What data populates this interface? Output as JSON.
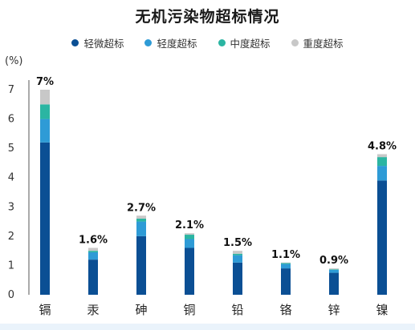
{
  "chart_data": {
    "type": "bar",
    "stacked": true,
    "title": "无机污染物超标情况",
    "ylabel": "(%)",
    "xlabel": "",
    "ylim": [
      0,
      7
    ],
    "yticks": [
      0,
      1,
      2,
      3,
      4,
      5,
      6,
      7
    ],
    "grid": false,
    "legend_position": "top",
    "categories": [
      "镉",
      "汞",
      "砷",
      "铜",
      "铅",
      "铬",
      "锌",
      "镍"
    ],
    "totals_labels": [
      "7%",
      "1.6%",
      "2.7%",
      "2.1%",
      "1.5%",
      "1.1%",
      "0.9%",
      "4.8%"
    ],
    "totals": [
      7.0,
      1.6,
      2.7,
      2.1,
      1.5,
      1.1,
      0.9,
      4.8
    ],
    "series": [
      {
        "name": "轻微超标",
        "color": "#0b4f94",
        "values": [
          5.2,
          1.2,
          2.0,
          1.6,
          1.1,
          0.9,
          0.75,
          3.9
        ]
      },
      {
        "name": "轻度超标",
        "color": "#2e9bd6",
        "values": [
          0.8,
          0.25,
          0.5,
          0.3,
          0.25,
          0.15,
          0.1,
          0.5
        ]
      },
      {
        "name": "中度超标",
        "color": "#2bb5a2",
        "values": [
          0.5,
          0.05,
          0.1,
          0.15,
          0.05,
          0.03,
          0.02,
          0.3
        ]
      },
      {
        "name": "重度超标",
        "color": "#c8c8c8",
        "values": [
          0.5,
          0.1,
          0.1,
          0.05,
          0.1,
          0.02,
          0.03,
          0.1
        ]
      }
    ]
  }
}
